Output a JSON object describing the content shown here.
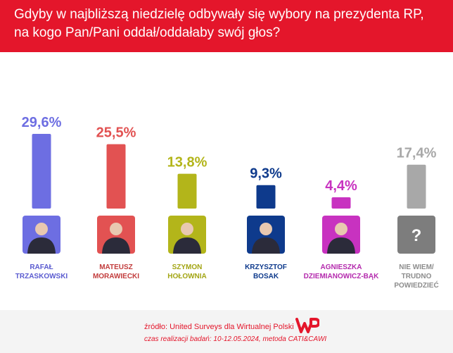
{
  "header": {
    "line1": "Gdyby w najbliższą niedzielę odbywały się wybory na prezydenta RP,",
    "line2": "na kogo Pan/Pani oddał/oddałaby swój głos?"
  },
  "chart_data": {
    "type": "bar",
    "title": "Gdyby w najbliższą niedzielę odbywały się wybory na prezydenta RP, na kogo Pan/Pani oddał/oddałaby swój głos?",
    "xlabel": "",
    "ylabel": "",
    "ylim": [
      0,
      30
    ],
    "grid": false,
    "legend": "none",
    "categories": [
      "RAFAŁ TRZASKOWSKI",
      "MATEUSZ MORAWIECKI",
      "SZYMON HOŁOWNIA",
      "KRZYSZTOF BOSAK",
      "AGNIESZKA DZIEMIANOWICZ-BĄK",
      "NIE WIEM/ TRUDNO POWIEDZIEĆ"
    ],
    "values": [
      29.6,
      25.5,
      13.8,
      9.3,
      4.4,
      17.4
    ],
    "value_labels": [
      "29,6%",
      "25,5%",
      "13,8%",
      "9,3%",
      "4,4%",
      "17,4%"
    ],
    "name_lines": [
      [
        "RAFAŁ",
        "TRZASKOWSKI"
      ],
      [
        "MATEUSZ",
        "MORAWIECKI"
      ],
      [
        "SZYMON",
        "HOŁOWNIA"
      ],
      [
        "KRZYSZTOF",
        "BOSAK"
      ],
      [
        "AGNIESZKA",
        "DZIEMIANOWICZ-BĄK"
      ],
      [
        "NIE WIEM/",
        "TRUDNO",
        "POWIEDZIEĆ"
      ]
    ],
    "colors": [
      "#6d6ee2",
      "#e25252",
      "#b3b51a",
      "#0e3a8c",
      "#c832c0",
      "#a8a8a8"
    ],
    "label_colors": [
      "#6d6ee2",
      "#e25252",
      "#b3b51a",
      "#0e3a8c",
      "#c832c0",
      "#a8a8a8"
    ],
    "name_colors": [
      "#5b5cd0",
      "#c23c3c",
      "#a3a514",
      "#0e3a8c",
      "#b42aad",
      "#8c8c8c"
    ],
    "portrait_icons": [
      "portrait-icon",
      "portrait-icon",
      "portrait-icon",
      "portrait-icon",
      "portrait-icon",
      "question-mark-icon"
    ],
    "unknown_symbol": "?"
  },
  "footer": {
    "source": "źródło: United Surveys dla Wirtualnej Polski",
    "time": "czas realizacji badań: 10-12.05.2024, metoda CATI&CAWI",
    "logo_icon": "wp-logo-icon",
    "accent_color": "#e4162b"
  }
}
